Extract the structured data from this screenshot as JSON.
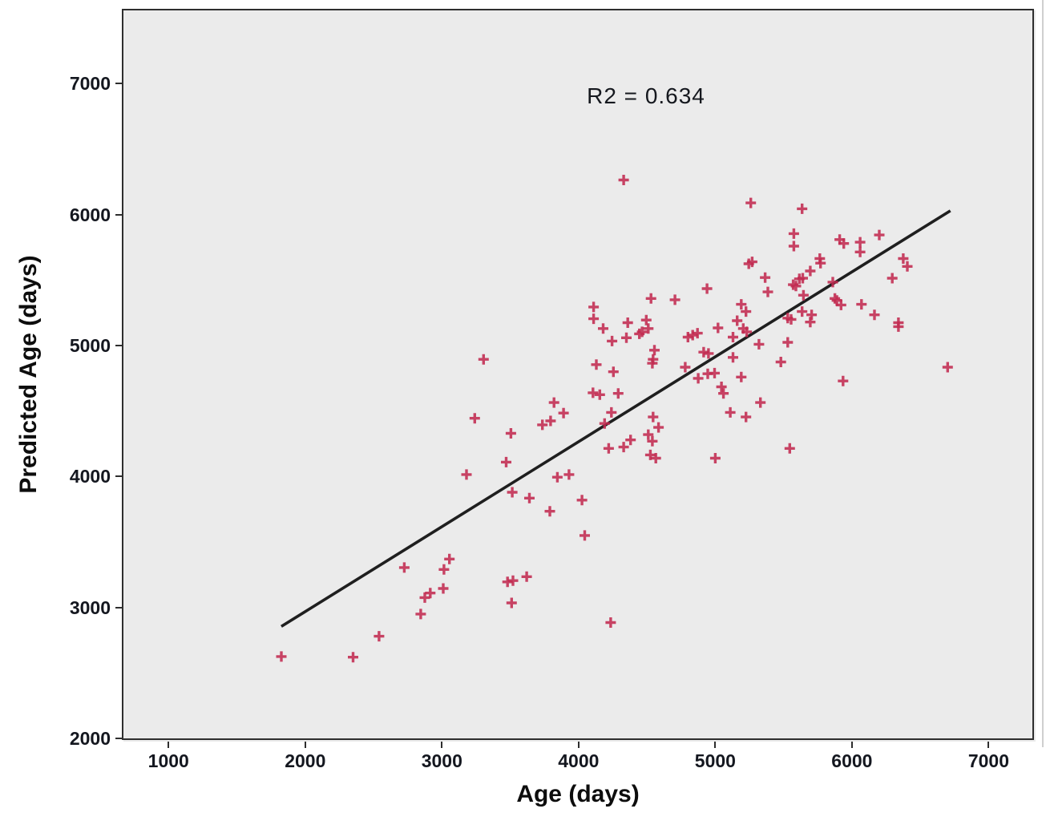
{
  "chart_data": {
    "type": "scatter",
    "title": "",
    "annotation": "R2 = 0.634",
    "r_squared": 0.634,
    "xlabel": "Age (days)",
    "ylabel": "Predicted Age (days)",
    "xlim": [
      670,
      7320
    ],
    "ylim": [
      2000,
      7560
    ],
    "x_ticks": [
      1000,
      2000,
      3000,
      4000,
      5000,
      6000,
      7000
    ],
    "y_ticks": [
      2000,
      3000,
      4000,
      5000,
      6000,
      7000
    ],
    "grid": "off",
    "legend": "none",
    "marker": "plus",
    "marker_color": "#C12A50",
    "fit_line": {
      "x1": 1825,
      "y1": 2855,
      "x2": 6720,
      "y2": 6030,
      "color": "#1f1f1f"
    },
    "points": [
      [
        4330,
        6265
      ],
      [
        5260,
        6090
      ],
      [
        5635,
        6045
      ],
      [
        5575,
        5855
      ],
      [
        5910,
        5810
      ],
      [
        5940,
        5780
      ],
      [
        6060,
        5790
      ],
      [
        6200,
        5845
      ],
      [
        5575,
        5760
      ],
      [
        6060,
        5715
      ],
      [
        5270,
        5640
      ],
      [
        5245,
        5625
      ],
      [
        5765,
        5665
      ],
      [
        5770,
        5630
      ],
      [
        6375,
        5665
      ],
      [
        6405,
        5605
      ],
      [
        5695,
        5570
      ],
      [
        5365,
        5520
      ],
      [
        5615,
        5510
      ],
      [
        5640,
        5515
      ],
      [
        6295,
        5515
      ],
      [
        5570,
        5465
      ],
      [
        5590,
        5455
      ],
      [
        5860,
        5485
      ],
      [
        4940,
        5435
      ],
      [
        5385,
        5410
      ],
      [
        5645,
        5385
      ],
      [
        4530,
        5360
      ],
      [
        4705,
        5350
      ],
      [
        5875,
        5360
      ],
      [
        5890,
        5345
      ],
      [
        5920,
        5310
      ],
      [
        6070,
        5315
      ],
      [
        5190,
        5315
      ],
      [
        4110,
        5295
      ],
      [
        5225,
        5260
      ],
      [
        5635,
        5260
      ],
      [
        6165,
        5235
      ],
      [
        5705,
        5235
      ],
      [
        4110,
        5205
      ],
      [
        5530,
        5210
      ],
      [
        5555,
        5200
      ],
      [
        4495,
        5195
      ],
      [
        5160,
        5190
      ],
      [
        5695,
        5180
      ],
      [
        6340,
        5175
      ],
      [
        4360,
        5175
      ],
      [
        6340,
        5145
      ],
      [
        4180,
        5130
      ],
      [
        4510,
        5130
      ],
      [
        5020,
        5135
      ],
      [
        5205,
        5130
      ],
      [
        4465,
        5105
      ],
      [
        5230,
        5105
      ],
      [
        4870,
        5095
      ],
      [
        4445,
        5090
      ],
      [
        4835,
        5080
      ],
      [
        4800,
        5065
      ],
      [
        5130,
        5065
      ],
      [
        4350,
        5060
      ],
      [
        4245,
        5035
      ],
      [
        5320,
        5010
      ],
      [
        5530,
        5025
      ],
      [
        4555,
        4965
      ],
      [
        4915,
        4950
      ],
      [
        4950,
        4940
      ],
      [
        5130,
        4910
      ],
      [
        4545,
        4895
      ],
      [
        3305,
        4895
      ],
      [
        5480,
        4875
      ],
      [
        4540,
        4865
      ],
      [
        4130,
        4855
      ],
      [
        6700,
        4835
      ],
      [
        4780,
        4835
      ],
      [
        4255,
        4800
      ],
      [
        4995,
        4790
      ],
      [
        4945,
        4785
      ],
      [
        5190,
        4760
      ],
      [
        4875,
        4750
      ],
      [
        5935,
        4730
      ],
      [
        5045,
        4685
      ],
      [
        4105,
        4640
      ],
      [
        4155,
        4625
      ],
      [
        4290,
        4635
      ],
      [
        5060,
        4635
      ],
      [
        3820,
        4565
      ],
      [
        5330,
        4565
      ],
      [
        4240,
        4490
      ],
      [
        5110,
        4490
      ],
      [
        3890,
        4485
      ],
      [
        4545,
        4455
      ],
      [
        5225,
        4455
      ],
      [
        3240,
        4445
      ],
      [
        3795,
        4425
      ],
      [
        4190,
        4405
      ],
      [
        3735,
        4395
      ],
      [
        4585,
        4375
      ],
      [
        3505,
        4330
      ],
      [
        4510,
        4320
      ],
      [
        4380,
        4280
      ],
      [
        4540,
        4270
      ],
      [
        4330,
        4225
      ],
      [
        4220,
        4215
      ],
      [
        5545,
        4215
      ],
      [
        4525,
        4165
      ],
      [
        4565,
        4140
      ],
      [
        5000,
        4140
      ],
      [
        3470,
        4110
      ],
      [
        3180,
        4015
      ],
      [
        3930,
        4015
      ],
      [
        3845,
        3995
      ],
      [
        3515,
        3880
      ],
      [
        3640,
        3835
      ],
      [
        4025,
        3820
      ],
      [
        3790,
        3735
      ],
      [
        4045,
        3550
      ],
      [
        3055,
        3370
      ],
      [
        2725,
        3305
      ],
      [
        3015,
        3290
      ],
      [
        3620,
        3235
      ],
      [
        3520,
        3205
      ],
      [
        3480,
        3195
      ],
      [
        3010,
        3145
      ],
      [
        2915,
        3110
      ],
      [
        2875,
        3075
      ],
      [
        3510,
        3035
      ],
      [
        2845,
        2950
      ],
      [
        4235,
        2885
      ],
      [
        2540,
        2780
      ],
      [
        1825,
        2625
      ],
      [
        2350,
        2620
      ]
    ]
  },
  "colors": {
    "plot_background": "#ebebeb",
    "page_background": "#ffffff",
    "frame_border": "#2e2e2e",
    "tick_text": "#14171f",
    "marker": "#C12A50",
    "fit_line": "#1f1f1f"
  }
}
